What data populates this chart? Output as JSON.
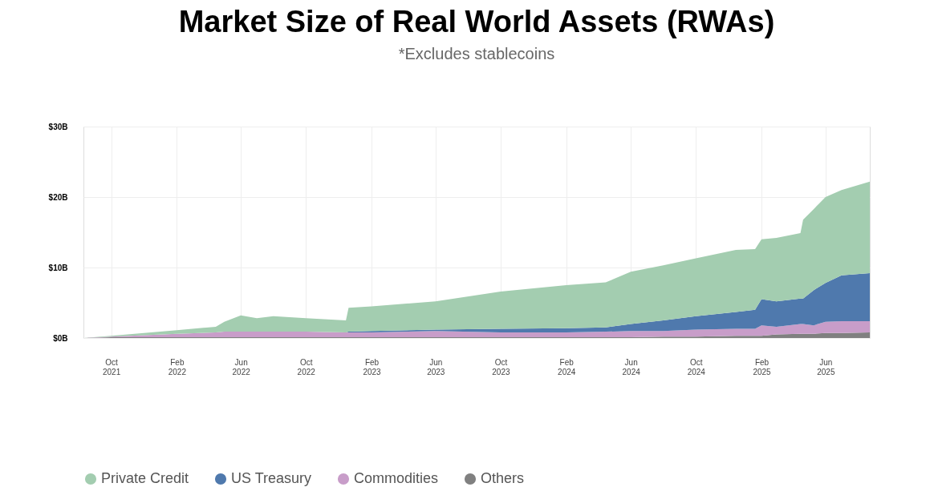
{
  "chart_data": {
    "type": "area",
    "stacked": true,
    "title": "Market Size of Real World Assets (RWAs)",
    "subtitle": "*Excludes stablecoins",
    "x": [
      "2021-08-10",
      "2021-10-01",
      "2022-02-01",
      "2022-04-15",
      "2022-05-01",
      "2022-06-01",
      "2022-07-01",
      "2022-08-01",
      "2022-10-01",
      "2022-12-15",
      "2022-12-20",
      "2023-02-01",
      "2023-06-01",
      "2023-10-01",
      "2024-02-01",
      "2024-04-15",
      "2024-06-01",
      "2024-08-01",
      "2024-10-01",
      "2024-12-15",
      "2025-01-20",
      "2025-02-01",
      "2025-03-01",
      "2025-04-15",
      "2025-04-20",
      "2025-05-10",
      "2025-06-01",
      "2025-07-01",
      "2025-08-23"
    ],
    "series": [
      {
        "name": "Others",
        "color": "#808080",
        "values": [
          0,
          0.1,
          0.1,
          0.1,
          0.1,
          0.1,
          0.1,
          0.1,
          0.1,
          0.1,
          0.1,
          0.1,
          0.1,
          0.1,
          0.1,
          0.1,
          0.1,
          0.2,
          0.2,
          0.3,
          0.3,
          0.3,
          0.5,
          0.6,
          0.6,
          0.6,
          0.7,
          0.7,
          0.8
        ]
      },
      {
        "name": "Commodities",
        "color": "#c89dc9",
        "values": [
          0,
          0.1,
          0.5,
          0.7,
          0.8,
          0.8,
          0.8,
          0.8,
          0.8,
          0.7,
          0.7,
          0.7,
          0.9,
          0.7,
          0.7,
          0.8,
          0.9,
          0.8,
          1.0,
          1.0,
          1.0,
          1.5,
          1.1,
          1.4,
          1.4,
          1.2,
          1.6,
          1.7,
          1.6
        ]
      },
      {
        "name": "US Treasury",
        "color": "#4f79ad",
        "values": [
          0,
          0,
          0,
          0,
          0,
          0,
          0,
          0,
          0,
          0,
          0.1,
          0.2,
          0.2,
          0.5,
          0.6,
          0.6,
          1.0,
          1.5,
          1.9,
          2.4,
          2.7,
          3.7,
          3.6,
          3.6,
          3.6,
          5.0,
          5.5,
          6.5,
          6.8
        ]
      },
      {
        "name": "Private Credit",
        "color": "#a3cdb0",
        "values": [
          0,
          0.1,
          0.5,
          0.8,
          1.4,
          2.3,
          1.9,
          2.2,
          1.9,
          1.7,
          3.4,
          3.5,
          4.0,
          5.3,
          6.1,
          6.4,
          7.4,
          7.8,
          8.2,
          8.8,
          8.6,
          8.5,
          9.0,
          9.3,
          11.2,
          11.5,
          12.2,
          12.1,
          13.0
        ]
      }
    ],
    "xlim": [
      "2021-08-10",
      "2025-08-23"
    ],
    "xticks": [
      {
        "value": "2021-10-01",
        "label": "Oct 2021"
      },
      {
        "value": "2022-02-01",
        "label": "Feb 2022"
      },
      {
        "value": "2022-06-01",
        "label": "Jun 2022"
      },
      {
        "value": "2022-10-01",
        "label": "Oct 2022"
      },
      {
        "value": "2023-02-01",
        "label": "Feb 2023"
      },
      {
        "value": "2023-06-01",
        "label": "Jun 2023"
      },
      {
        "value": "2023-10-01",
        "label": "Oct 2023"
      },
      {
        "value": "2024-02-01",
        "label": "Feb 2024"
      },
      {
        "value": "2024-06-01",
        "label": "Jun 2024"
      },
      {
        "value": "2024-10-01",
        "label": "Oct 2024"
      },
      {
        "value": "2025-02-01",
        "label": "Feb 2025"
      },
      {
        "value": "2025-06-01",
        "label": "Jun 2025"
      }
    ],
    "ylim": [
      0,
      30
    ],
    "yticks": [
      {
        "value": 0,
        "label": "$0B"
      },
      {
        "value": 10,
        "label": "$10B"
      },
      {
        "value": 20,
        "label": "$20B"
      },
      {
        "value": 30,
        "label": "$30B"
      }
    ],
    "grid": true,
    "legend": "bottom"
  }
}
